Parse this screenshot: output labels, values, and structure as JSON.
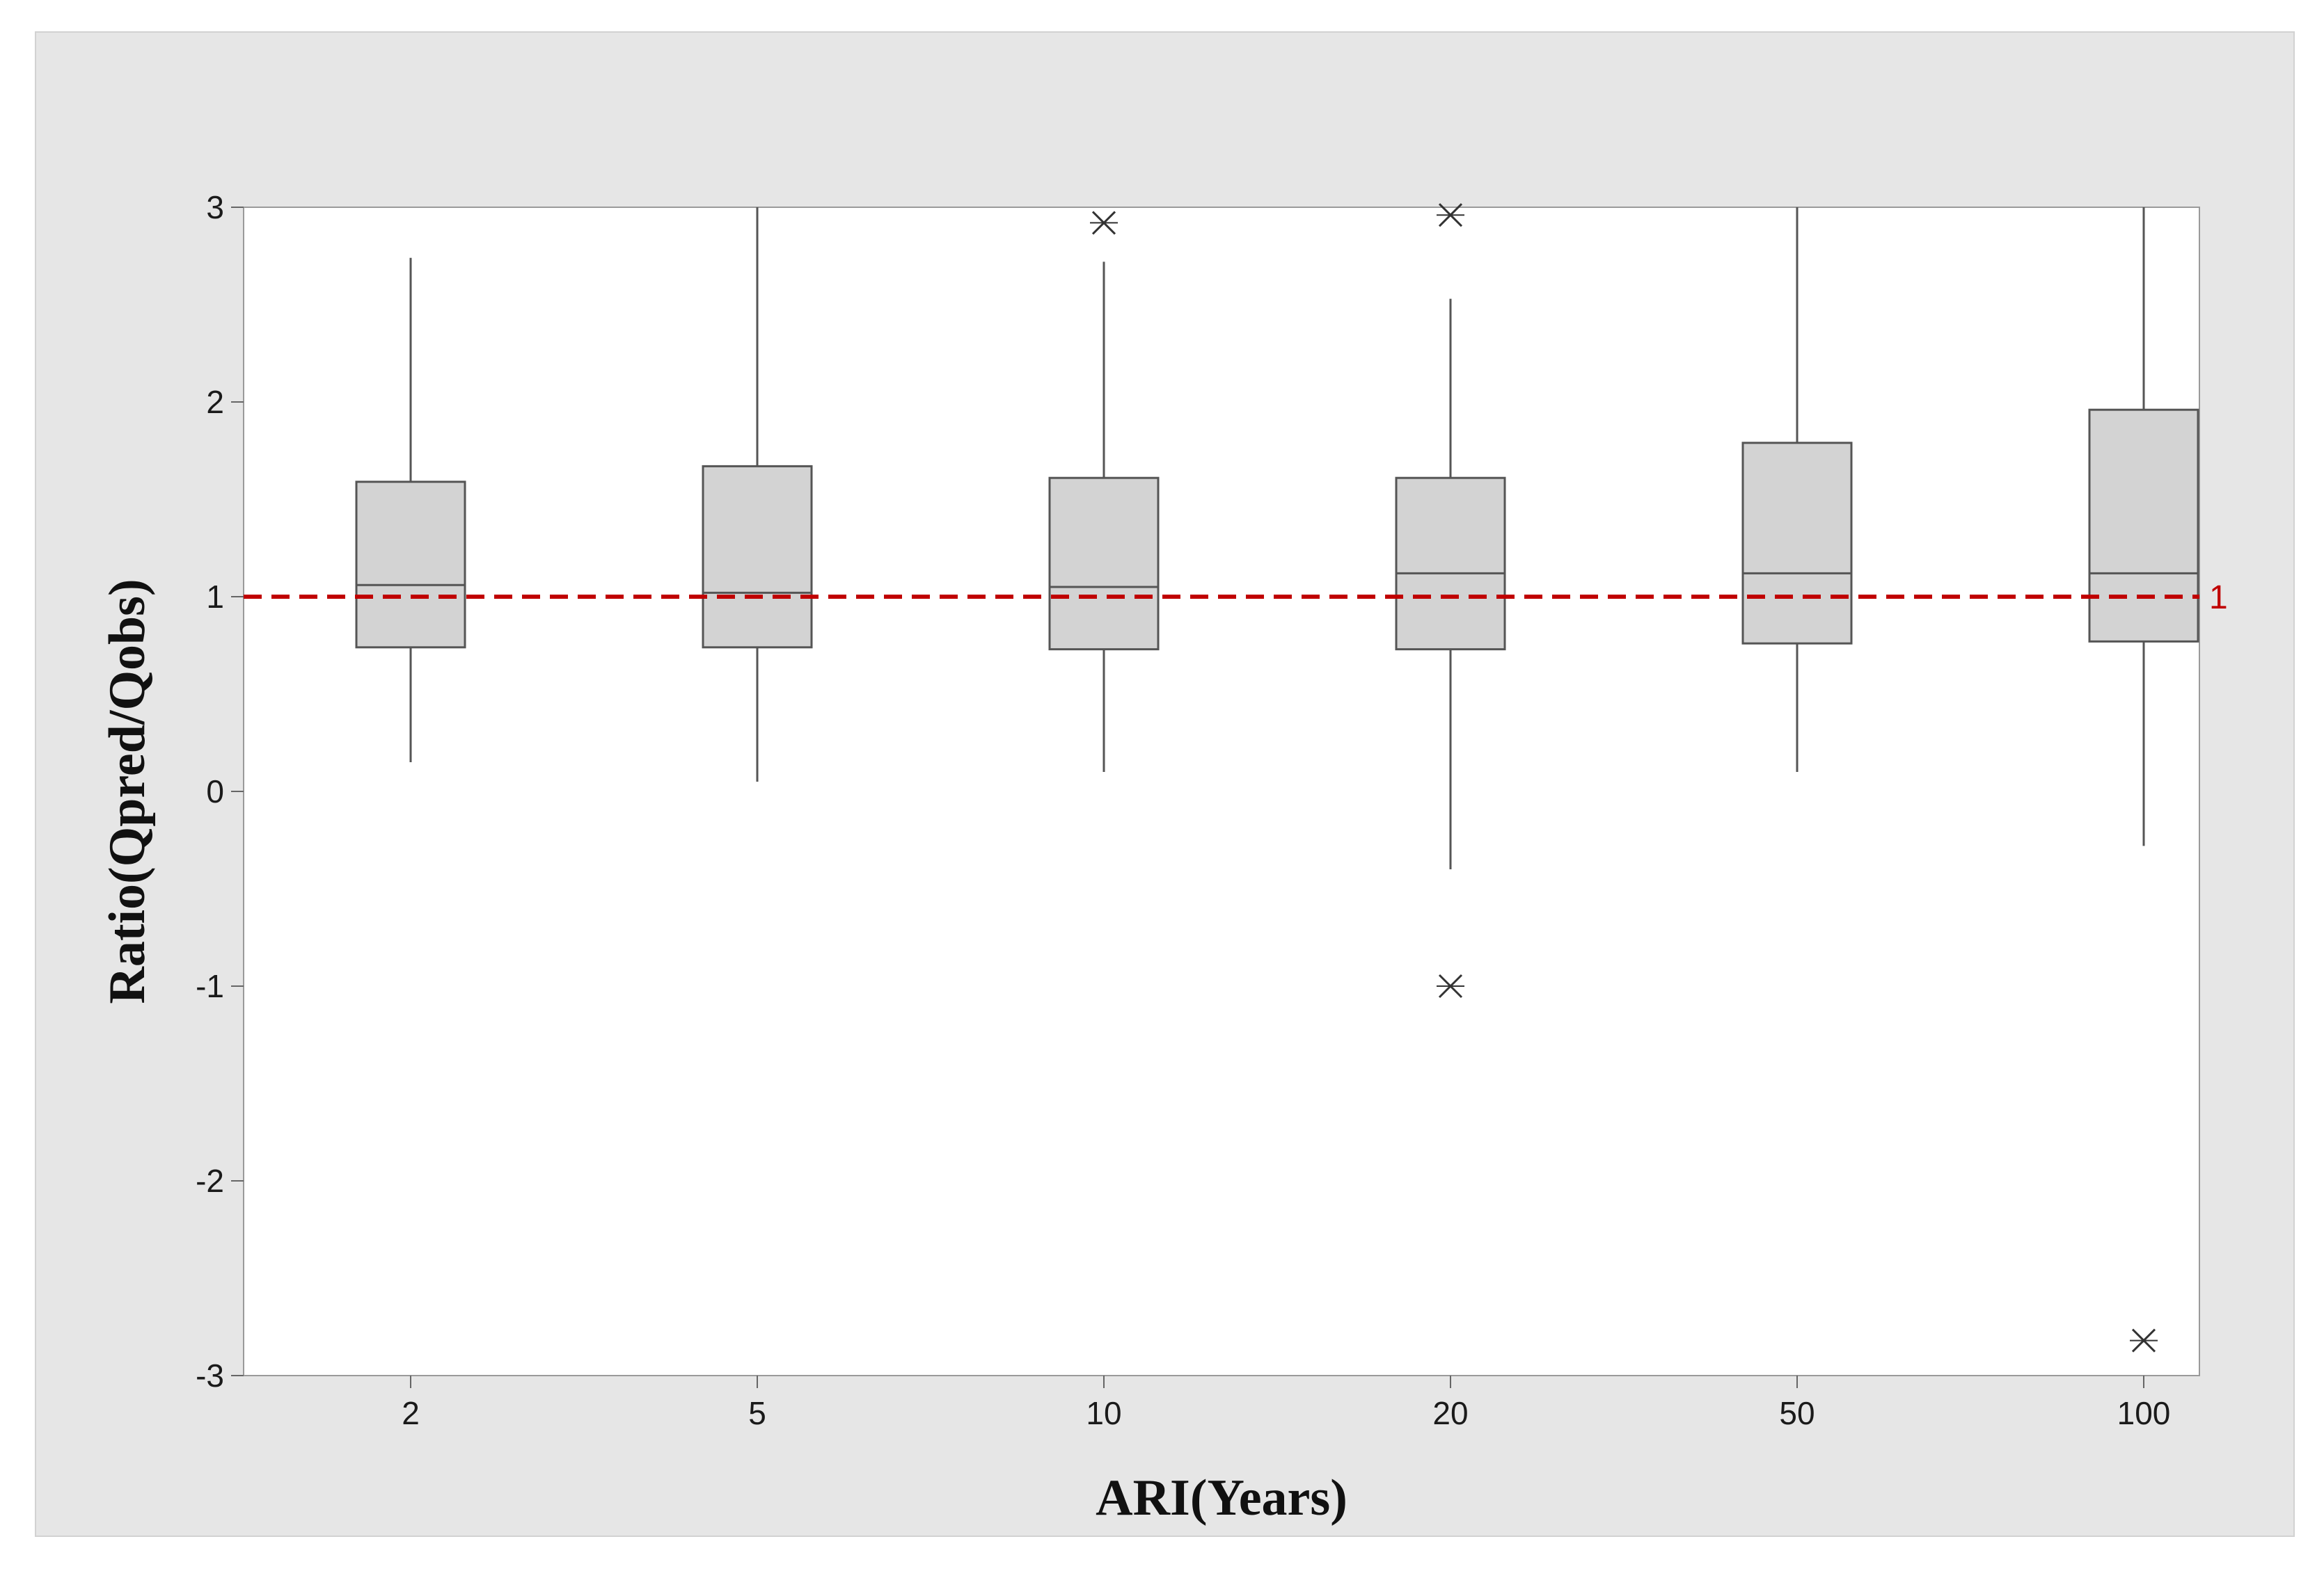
{
  "chart_data": {
    "type": "box",
    "title": "",
    "xlabel": "ARI(Years)",
    "ylabel": "Ratio(Qpred/Qobs)",
    "ylim": [
      -3,
      3
    ],
    "yticks": [
      -3,
      -2,
      -1,
      0,
      1,
      2,
      3
    ],
    "grid": false,
    "categories": [
      "2",
      "5",
      "10",
      "20",
      "50",
      "100"
    ],
    "boxes": [
      {
        "category": "2",
        "whisker_low": 0.15,
        "q1": 0.74,
        "median": 1.06,
        "q3": 1.59,
        "whisker_high": 2.74,
        "outliers": []
      },
      {
        "category": "5",
        "whisker_low": 0.05,
        "q1": 0.74,
        "median": 1.02,
        "q3": 1.67,
        "whisker_high": 3.0,
        "outliers": []
      },
      {
        "category": "10",
        "whisker_low": 0.1,
        "q1": 0.73,
        "median": 1.05,
        "q3": 1.61,
        "whisker_high": 2.72,
        "outliers": [
          2.92
        ]
      },
      {
        "category": "20",
        "whisker_low": -0.4,
        "q1": 0.73,
        "median": 1.12,
        "q3": 1.61,
        "whisker_high": 2.53,
        "outliers": [
          2.96,
          -1.0
        ]
      },
      {
        "category": "50",
        "whisker_low": 0.1,
        "q1": 0.76,
        "median": 1.12,
        "q3": 1.79,
        "whisker_high": 3.0,
        "outliers": []
      },
      {
        "category": "100",
        "whisker_low": -0.28,
        "q1": 0.77,
        "median": 1.12,
        "q3": 1.96,
        "whisker_high": 3.0,
        "outliers": [
          -2.82
        ]
      }
    ],
    "reference_line": {
      "value": 1,
      "label": "1",
      "style": "dashed",
      "color": "#c00000"
    },
    "box_fill": "#d3d3d3",
    "box_stroke": "#555555"
  }
}
